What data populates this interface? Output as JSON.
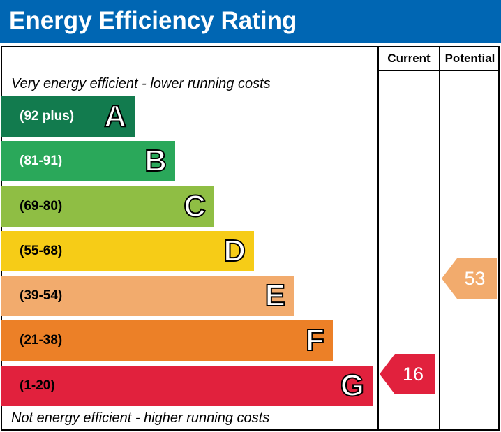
{
  "title": "Energy Efficiency Rating",
  "columns": {
    "current": "Current",
    "potential": "Potential"
  },
  "top_caption": "Very energy efficient - lower running costs",
  "bottom_caption": "Not energy efficient - higher running costs",
  "bands": [
    {
      "letter": "A",
      "range": "(92 plus)",
      "color": "#127b4e",
      "text_color": "#ffffff"
    },
    {
      "letter": "B",
      "range": "(81-91)",
      "color": "#2aa85a",
      "text_color": "#ffffff"
    },
    {
      "letter": "C",
      "range": "(69-80)",
      "color": "#8fbe44",
      "text_color": "#000000"
    },
    {
      "letter": "D",
      "range": "(55-68)",
      "color": "#f6cc17",
      "text_color": "#000000"
    },
    {
      "letter": "E",
      "range": "(39-54)",
      "color": "#f2ab6d",
      "text_color": "#000000"
    },
    {
      "letter": "F",
      "range": "(21-38)",
      "color": "#ec8027",
      "text_color": "#000000"
    },
    {
      "letter": "G",
      "range": "(1-20)",
      "color": "#e1213d",
      "text_color": "#000000"
    }
  ],
  "current": {
    "value": "16",
    "band": "G",
    "color": "#e1213d"
  },
  "potential": {
    "value": "53",
    "band": "E",
    "color": "#f2ab6d"
  }
}
